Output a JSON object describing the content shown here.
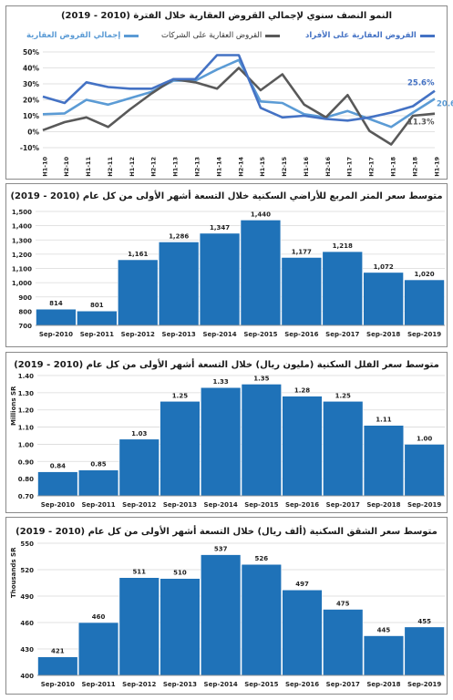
{
  "charts": {
    "line": {
      "title": "النمو النصف سنوي لإجمالي القروض العقارية خلال الفترة (2010 - 2019)",
      "legend_total": "إجمالي القروض العقارية",
      "legend_companies": "القروض العقارية على الشركات",
      "legend_individuals": "القروض العقارية على الأفراد",
      "end_label_individuals": "25.6%",
      "end_label_total": "20.6%",
      "end_label_companies": "11.3%"
    },
    "land": {
      "title": "متوسط سعر المتر المربع للأراضي السكنية خلال التسعة أشهر الأولى من كل عام (2010 - 2019)"
    },
    "villa": {
      "title": "متوسط سعر الفلل السكنية (مليون ريال) خلال التسعة أشهر الأولى من كل عام (2010 - 2019)",
      "ylabel": "Millions SR"
    },
    "apt": {
      "title": "متوسط سعر الشقق السكنية (ألف ريال) خلال التسعة أشهر الأولى من كل عام (2010 - 2019)",
      "ylabel": "Thousands SR"
    }
  },
  "chart_data": [
    {
      "type": "line",
      "title": "النمو النصف سنوي لإجمالي القروض العقارية خلال الفترة (2010 - 2019)",
      "x": [
        "H1-10",
        "H2-10",
        "H1-11",
        "H2-11",
        "H1-12",
        "H2-12",
        "H1-13",
        "H2-13",
        "H1-14",
        "H2-14",
        "H1-15",
        "H2-15",
        "H1-16",
        "H2-16",
        "H1-17",
        "H2-17",
        "H1-18",
        "H2-18",
        "H1-19"
      ],
      "series": [
        {
          "name": "إجمالي القروض العقارية",
          "color": "#5b9bd5",
          "values": [
            11,
            11.5,
            20,
            17,
            21,
            25,
            32,
            32,
            39,
            45,
            19,
            18,
            11,
            9,
            13,
            8,
            3,
            12,
            20.6
          ]
        },
        {
          "name": "القروض العقارية على الشركات",
          "color": "#595959",
          "values": [
            1,
            6,
            9,
            3,
            14,
            24,
            33,
            31,
            27,
            40,
            26,
            36,
            17,
            9,
            23,
            0.5,
            -8,
            10,
            11.3
          ]
        },
        {
          "name": "القروض العقارية على الأفراد",
          "color": "#4472c4",
          "values": [
            22,
            18,
            31,
            28,
            27,
            27,
            33,
            33,
            48,
            48,
            15,
            9,
            10,
            8,
            7,
            9,
            12,
            16,
            25.6
          ]
        }
      ],
      "yticks": [
        "50%",
        "40%",
        "30%",
        "20%",
        "10%",
        "0%",
        "-10%"
      ],
      "ylim": [
        -10,
        50
      ],
      "legend": "top"
    },
    {
      "type": "bar",
      "title": "متوسط سعر المتر المربع للأراضي السكنية خلال التسعة أشهر الأولى من كل عام (2010 - 2019)",
      "categories": [
        "Sep-2010",
        "Sep-2011",
        "Sep-2012",
        "Sep-2013",
        "Sep-2014",
        "Sep-2015",
        "Sep-2016",
        "Sep-2017",
        "Sep-2018",
        "Sep-2019"
      ],
      "values": [
        814,
        801,
        1161,
        1286,
        1347,
        1440,
        1177,
        1218,
        1072,
        1020
      ],
      "labels": [
        "814",
        "801",
        "1,161",
        "1,286",
        "1,347",
        "1,440",
        "1,177",
        "1,218",
        "1,072",
        "1,020"
      ],
      "yticks": [
        "1,500",
        "1,400",
        "1,300",
        "1,200",
        "1,100",
        "1,000",
        "900",
        "800",
        "700"
      ],
      "ylim": [
        700,
        1500
      ]
    },
    {
      "type": "bar",
      "title": "متوسط سعر الفلل السكنية (مليون ريال) خلال التسعة أشهر الأولى من كل عام (2010 - 2019)",
      "ylabel": "Millions SR",
      "categories": [
        "Sep-2010",
        "Sep-2011",
        "Sep-2012",
        "Sep-2013",
        "Sep-2014",
        "Sep-2015",
        "Sep-2016",
        "Sep-2017",
        "Sep-2018",
        "Sep-2019"
      ],
      "values": [
        0.84,
        0.85,
        1.03,
        1.25,
        1.33,
        1.35,
        1.28,
        1.25,
        1.11,
        1.0
      ],
      "labels": [
        "0.84",
        "0.85",
        "1.03",
        "1.25",
        "1.33",
        "1.35",
        "1.28",
        "1.25",
        "1.11",
        "1.00"
      ],
      "yticks": [
        "1.40",
        "1.30",
        "1.20",
        "1.10",
        "1.00",
        "0.90",
        "0.80",
        "0.70"
      ],
      "ylim": [
        0.7,
        1.4
      ]
    },
    {
      "type": "bar",
      "title": "متوسط سعر الشقق السكنية (ألف ريال) خلال التسعة أشهر الأولى من كل عام (2010 - 2019)",
      "ylabel": "Thousands SR",
      "categories": [
        "Sep-2010",
        "Sep-2011",
        "Sep-2012",
        "Sep-2013",
        "Sep-2014",
        "Sep-2015",
        "Sep-2016",
        "Sep-2017",
        "Sep-2018",
        "Sep-2019"
      ],
      "values": [
        421,
        460,
        511,
        510,
        537,
        526,
        497,
        475,
        445,
        455
      ],
      "labels": [
        "421",
        "460",
        "511",
        "510",
        "537",
        "526",
        "497",
        "475",
        "445",
        "455"
      ],
      "yticks": [
        "550",
        "520",
        "490",
        "460",
        "430",
        "400"
      ],
      "ylim": [
        400,
        550
      ]
    }
  ],
  "colors": {
    "bar": "#1f72b8",
    "grid": "#d9d9d9",
    "axis": "#7f7f7f"
  }
}
